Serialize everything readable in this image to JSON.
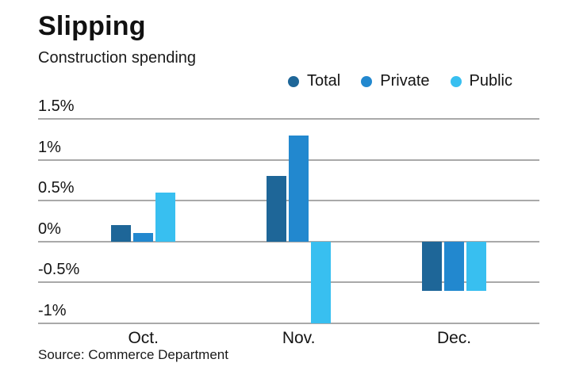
{
  "chart_data": {
    "type": "bar",
    "title": "Slipping",
    "subtitle": "Construction spending",
    "source": "Source: Commerce Department",
    "categories": [
      "Oct.",
      "Nov.",
      "Dec."
    ],
    "series": [
      {
        "name": "Total",
        "color": "#1e6698",
        "values": [
          0.2,
          0.8,
          -0.6
        ]
      },
      {
        "name": "Private",
        "color": "#2288cf",
        "values": [
          0.1,
          1.3,
          -0.6
        ]
      },
      {
        "name": "Public",
        "color": "#38bff0",
        "values": [
          0.6,
          -1.0,
          -0.6
        ]
      }
    ],
    "yticks": [
      1.5,
      1.0,
      0.5,
      0.0,
      -0.5,
      -1.0
    ],
    "ytick_labels": [
      "1.5%",
      "1%",
      "0.5%",
      "0%",
      "-0.5%",
      "-1%"
    ],
    "ylim": [
      -1.0,
      1.5
    ],
    "unit": "%",
    "grid": true,
    "legend_position": "top-right",
    "colors": {
      "gridline": "#a9a9a9",
      "text": "#141414",
      "background": "#ffffff"
    }
  }
}
